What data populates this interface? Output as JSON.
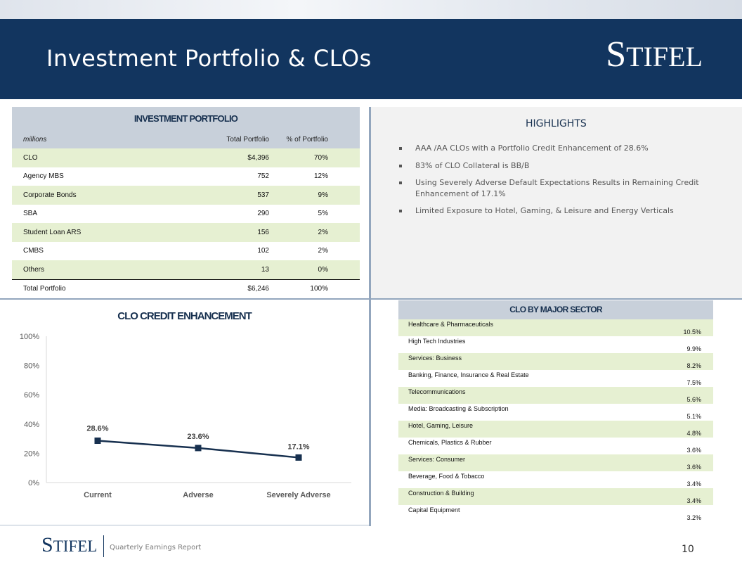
{
  "header": {
    "title": "Investment Portfolio & CLOs",
    "logo": "Stifel"
  },
  "investment_portfolio": {
    "title": "INVESTMENT PORTFOLIO",
    "columns": [
      "millions",
      "Total Portfolio",
      "% of Portfolio"
    ],
    "rows": [
      {
        "name": "CLO",
        "total": "$4,396",
        "pct": "70%"
      },
      {
        "name": "Agency MBS",
        "total": "752",
        "pct": "12%"
      },
      {
        "name": "Corporate Bonds",
        "total": "537",
        "pct": "9%"
      },
      {
        "name": "SBA",
        "total": "290",
        "pct": "5%"
      },
      {
        "name": "Student Loan ARS",
        "total": "156",
        "pct": "2%"
      },
      {
        "name": "CMBS",
        "total": "102",
        "pct": "2%"
      },
      {
        "name": "Others",
        "total": "13",
        "pct": "0%"
      }
    ],
    "total_row": {
      "name": "Total Portfolio",
      "total": "$6,246",
      "pct": "100%"
    }
  },
  "highlights": {
    "title": "HIGHLIGHTS",
    "items": [
      "AAA /AA CLOs with a Portfolio Credit Enhancement of 28.6%",
      "83% of CLO Collateral is BB/B",
      "Using Severely Adverse Default Expectations Results in Remaining Credit Enhancement of 17.1%",
      "Limited Exposure to Hotel, Gaming, & Leisure and Energy Verticals"
    ]
  },
  "chart_data": {
    "type": "line",
    "title": "CLO CREDIT ENHANCEMENT",
    "categories": [
      "Current",
      "Adverse",
      "Severely Adverse"
    ],
    "series": [
      {
        "values": [
          28.6,
          23.6,
          17.1
        ],
        "labels": [
          "28.6%",
          "23.6%",
          "17.1%"
        ]
      }
    ],
    "ylim": [
      0,
      100
    ],
    "yticks": [
      "0%",
      "20%",
      "40%",
      "60%",
      "80%",
      "100%"
    ],
    "xlabel": "",
    "ylabel": "",
    "grid": false,
    "color": "#17304f"
  },
  "sector_table": {
    "title": "CLO BY MAJOR SECTOR",
    "rows": [
      {
        "name": "Healthcare & Pharmaceuticals",
        "pct": "10.5%"
      },
      {
        "name": "High Tech Industries",
        "pct": "9.9%"
      },
      {
        "name": "Services: Business",
        "pct": "8.2%"
      },
      {
        "name": "Banking, Finance, Insurance & Real Estate",
        "pct": "7.5%"
      },
      {
        "name": "Telecommunications",
        "pct": "5.6%"
      },
      {
        "name": "Media: Broadcasting & Subscription",
        "pct": "5.1%"
      },
      {
        "name": "Hotel, Gaming, Leisure",
        "pct": "4.8%"
      },
      {
        "name": "Chemicals, Plastics & Rubber",
        "pct": "3.6%"
      },
      {
        "name": "Services: Consumer",
        "pct": "3.6%"
      },
      {
        "name": "Beverage, Food & Tobacco",
        "pct": "3.4%"
      },
      {
        "name": "Construction & Building",
        "pct": "3.4%"
      },
      {
        "name": "Capital Equipment",
        "pct": "3.2%"
      }
    ]
  },
  "footer": {
    "logo": "Stifel",
    "text": "Quarterly Earnings Report",
    "page_number": "10"
  },
  "colors": {
    "navy": "#12355f",
    "table_header": "#c8d0da",
    "row_highlight": "#e6f0d2"
  }
}
